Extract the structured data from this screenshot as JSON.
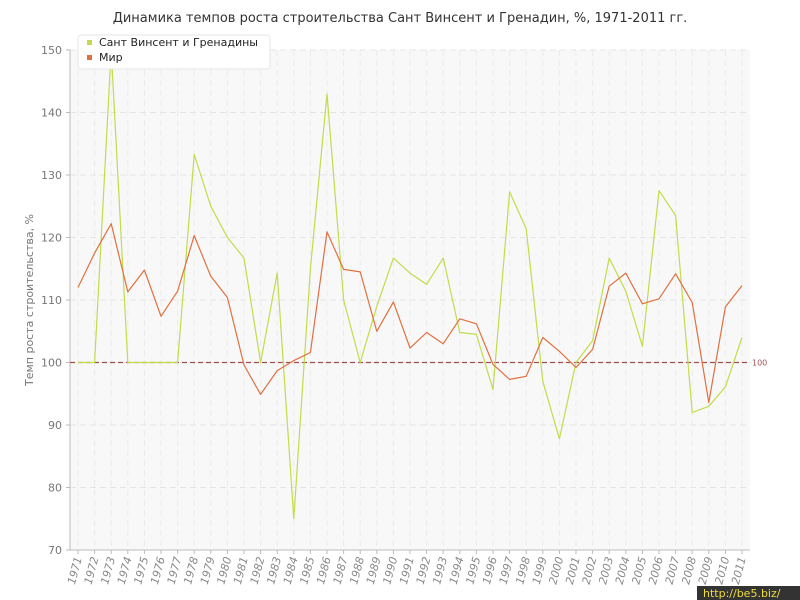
{
  "chart_data": {
    "type": "line",
    "title": "Динамика темпов роста строительства Сант Винсент и Гренадин, %, 1971-2011 гг.",
    "ylabel": "Темп роста строительства, %",
    "xlabel": "",
    "ylim": [
      70,
      150
    ],
    "yticks": [
      "70",
      "80",
      "90",
      "100",
      "110",
      "120",
      "130",
      "140",
      "150"
    ],
    "x": [
      "1971",
      "1972",
      "1973",
      "1974",
      "1975",
      "1976",
      "1977",
      "1978",
      "1979",
      "1980",
      "1981",
      "1982",
      "1983",
      "1984",
      "1985",
      "1986",
      "1987",
      "1988",
      "1989",
      "1990",
      "1991",
      "1992",
      "1993",
      "1994",
      "1995",
      "1996",
      "1997",
      "1998",
      "1999",
      "2000",
      "2001",
      "2002",
      "2003",
      "2004",
      "2005",
      "2006",
      "2007",
      "2008",
      "2009",
      "2010",
      "2011"
    ],
    "series": [
      {
        "name": "Сант Винсент и Гренадины",
        "color": "#c2dc4a",
        "values": [
          100,
          100,
          150,
          100,
          100,
          100,
          100,
          133.3,
          125,
          120,
          116.7,
          100,
          114.3,
          75,
          115,
          143,
          110,
          100,
          109,
          116.7,
          114.3,
          112.5,
          116.7,
          104.8,
          104.5,
          95.7,
          127.3,
          121.4,
          97,
          87.8,
          100,
          103.5,
          116.7,
          111.4,
          102.6,
          127.5,
          123.5,
          92,
          93,
          96.1,
          104
        ]
      },
      {
        "name": "Мир",
        "color": "#e07040",
        "values": [
          112,
          117.5,
          122.2,
          111.3,
          114.8,
          107.4,
          111.4,
          120.3,
          113.8,
          110.4,
          99.6,
          94.9,
          98.7,
          100.3,
          101.6,
          120.9,
          114.9,
          114.5,
          105,
          109.7,
          102.3,
          104.8,
          103,
          107,
          106.2,
          99.7,
          97.3,
          97.8,
          104,
          101.8,
          99.2,
          102.1,
          112.2,
          114.3,
          109.4,
          110.2,
          114.2,
          109.6,
          93.6,
          108.9,
          112.3
        ]
      }
    ],
    "reference_line": {
      "value": 100,
      "label": "100",
      "color": "#a05050"
    },
    "grid": true,
    "legend_position": "top-left"
  },
  "watermark": "http://be5.biz/"
}
